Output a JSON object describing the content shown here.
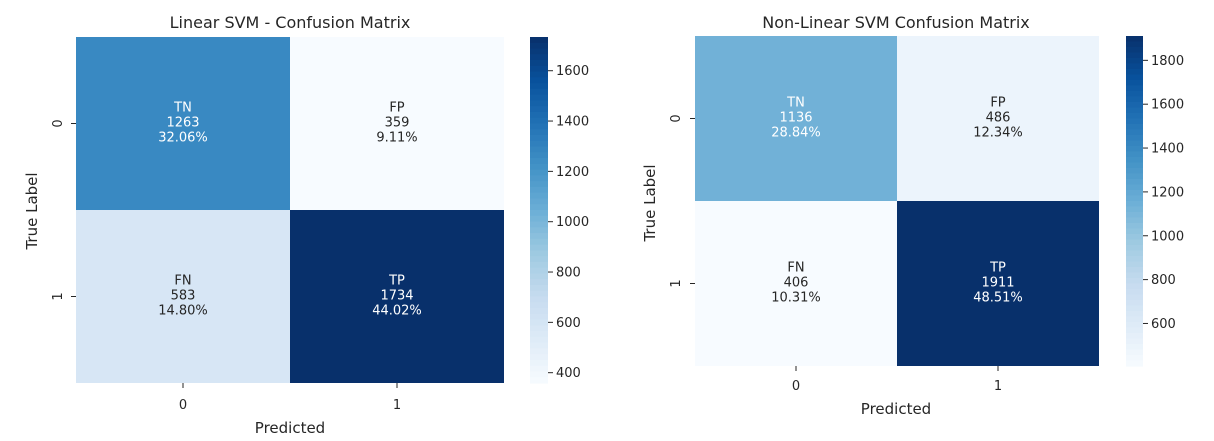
{
  "chart_data": [
    {
      "type": "heatmap",
      "title": "Linear SVM - Confusion Matrix",
      "xlabel": "Predicted",
      "ylabel": "True Label",
      "x_ticks": [
        "0",
        "1"
      ],
      "y_ticks": [
        "0",
        "1"
      ],
      "cells": [
        [
          {
            "label": "TN",
            "value": 1263,
            "percent": "32.06%"
          },
          {
            "label": "FP",
            "value": 359,
            "percent": "9.11%"
          }
        ],
        [
          {
            "label": "FN",
            "value": 583,
            "percent": "14.80%"
          },
          {
            "label": "TP",
            "value": 1734,
            "percent": "44.02%"
          }
        ]
      ],
      "colorbar": {
        "ticks": [
          "400",
          "600",
          "800",
          "1000",
          "1200",
          "1400",
          "1600"
        ],
        "min": 359,
        "max": 1734
      },
      "colormap": "Blues"
    },
    {
      "type": "heatmap",
      "title": "Non-Linear SVM Confusion Matrix",
      "xlabel": "Predicted",
      "ylabel": "True Label",
      "x_ticks": [
        "0",
        "1"
      ],
      "y_ticks": [
        "0",
        "1"
      ],
      "cells": [
        [
          {
            "label": "TN",
            "value": 1136,
            "percent": "28.84%"
          },
          {
            "label": "FP",
            "value": 486,
            "percent": "12.34%"
          }
        ],
        [
          {
            "label": "FN",
            "value": 406,
            "percent": "10.31%"
          },
          {
            "label": "TP",
            "value": 1911,
            "percent": "48.51%"
          }
        ]
      ],
      "colorbar": {
        "ticks": [
          "600",
          "800",
          "1000",
          "1200",
          "1400",
          "1600",
          "1800"
        ],
        "min": 406,
        "max": 1911
      },
      "colormap": "Blues"
    }
  ]
}
